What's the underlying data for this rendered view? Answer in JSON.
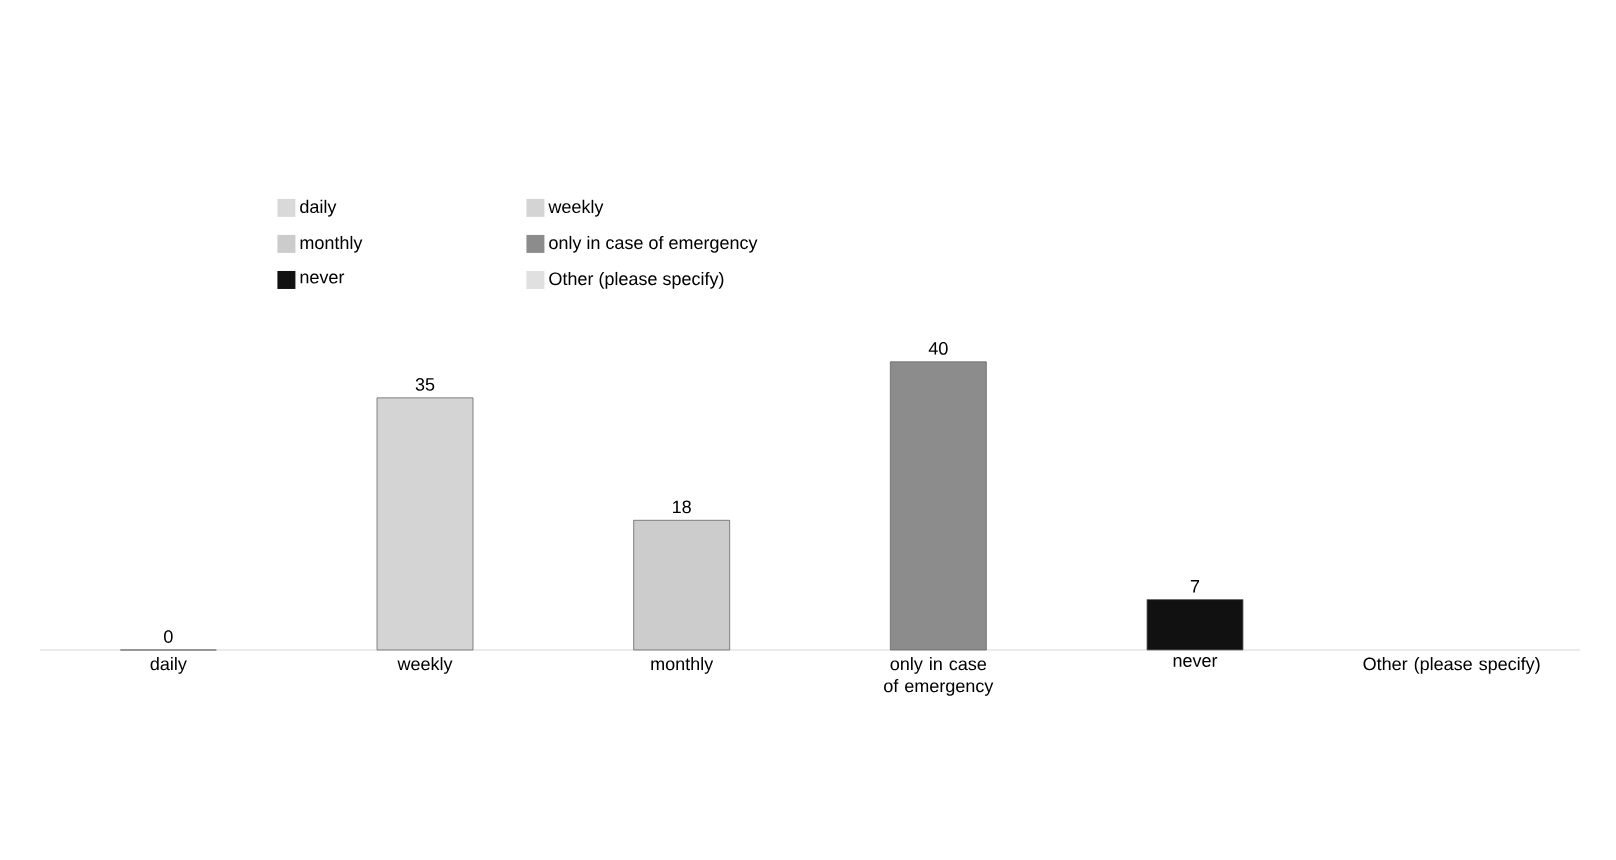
{
  "chart_data": {
    "type": "bar",
    "categories": [
      "daily",
      "weekly",
      "monthly",
      "only in case of emergency",
      "never",
      "Other (please specify)"
    ],
    "series": [
      {
        "name": "daily",
        "color": "#d9d9d9",
        "values": [
          0,
          null,
          null,
          null,
          null,
          null
        ],
        "value_labels": [
          "0",
          null,
          null,
          null,
          null,
          null
        ]
      },
      {
        "name": "weekly",
        "color": "#d4d4d4",
        "values": [
          null,
          35,
          null,
          null,
          null,
          null
        ],
        "value_labels": [
          null,
          "35",
          null,
          null,
          null,
          null
        ]
      },
      {
        "name": "monthly",
        "color": "#cccccc",
        "values": [
          null,
          null,
          18,
          null,
          null,
          null
        ],
        "value_labels": [
          null,
          null,
          "18",
          null,
          null,
          null
        ]
      },
      {
        "name": "only in case of emergency",
        "color": "#8c8c8c",
        "values": [
          null,
          null,
          null,
          40,
          null,
          null
        ],
        "value_labels": [
          null,
          null,
          null,
          "40",
          null,
          null
        ]
      },
      {
        "name": "never",
        "color": "#111111",
        "values": [
          null,
          null,
          null,
          null,
          7,
          null
        ],
        "value_labels": [
          null,
          null,
          null,
          null,
          "7",
          null
        ]
      },
      {
        "name": "Other (please specify)",
        "color": "#e0e0e0",
        "values": [
          null,
          null,
          null,
          null,
          null,
          null
        ]
      }
    ],
    "legend": "top"
  }
}
